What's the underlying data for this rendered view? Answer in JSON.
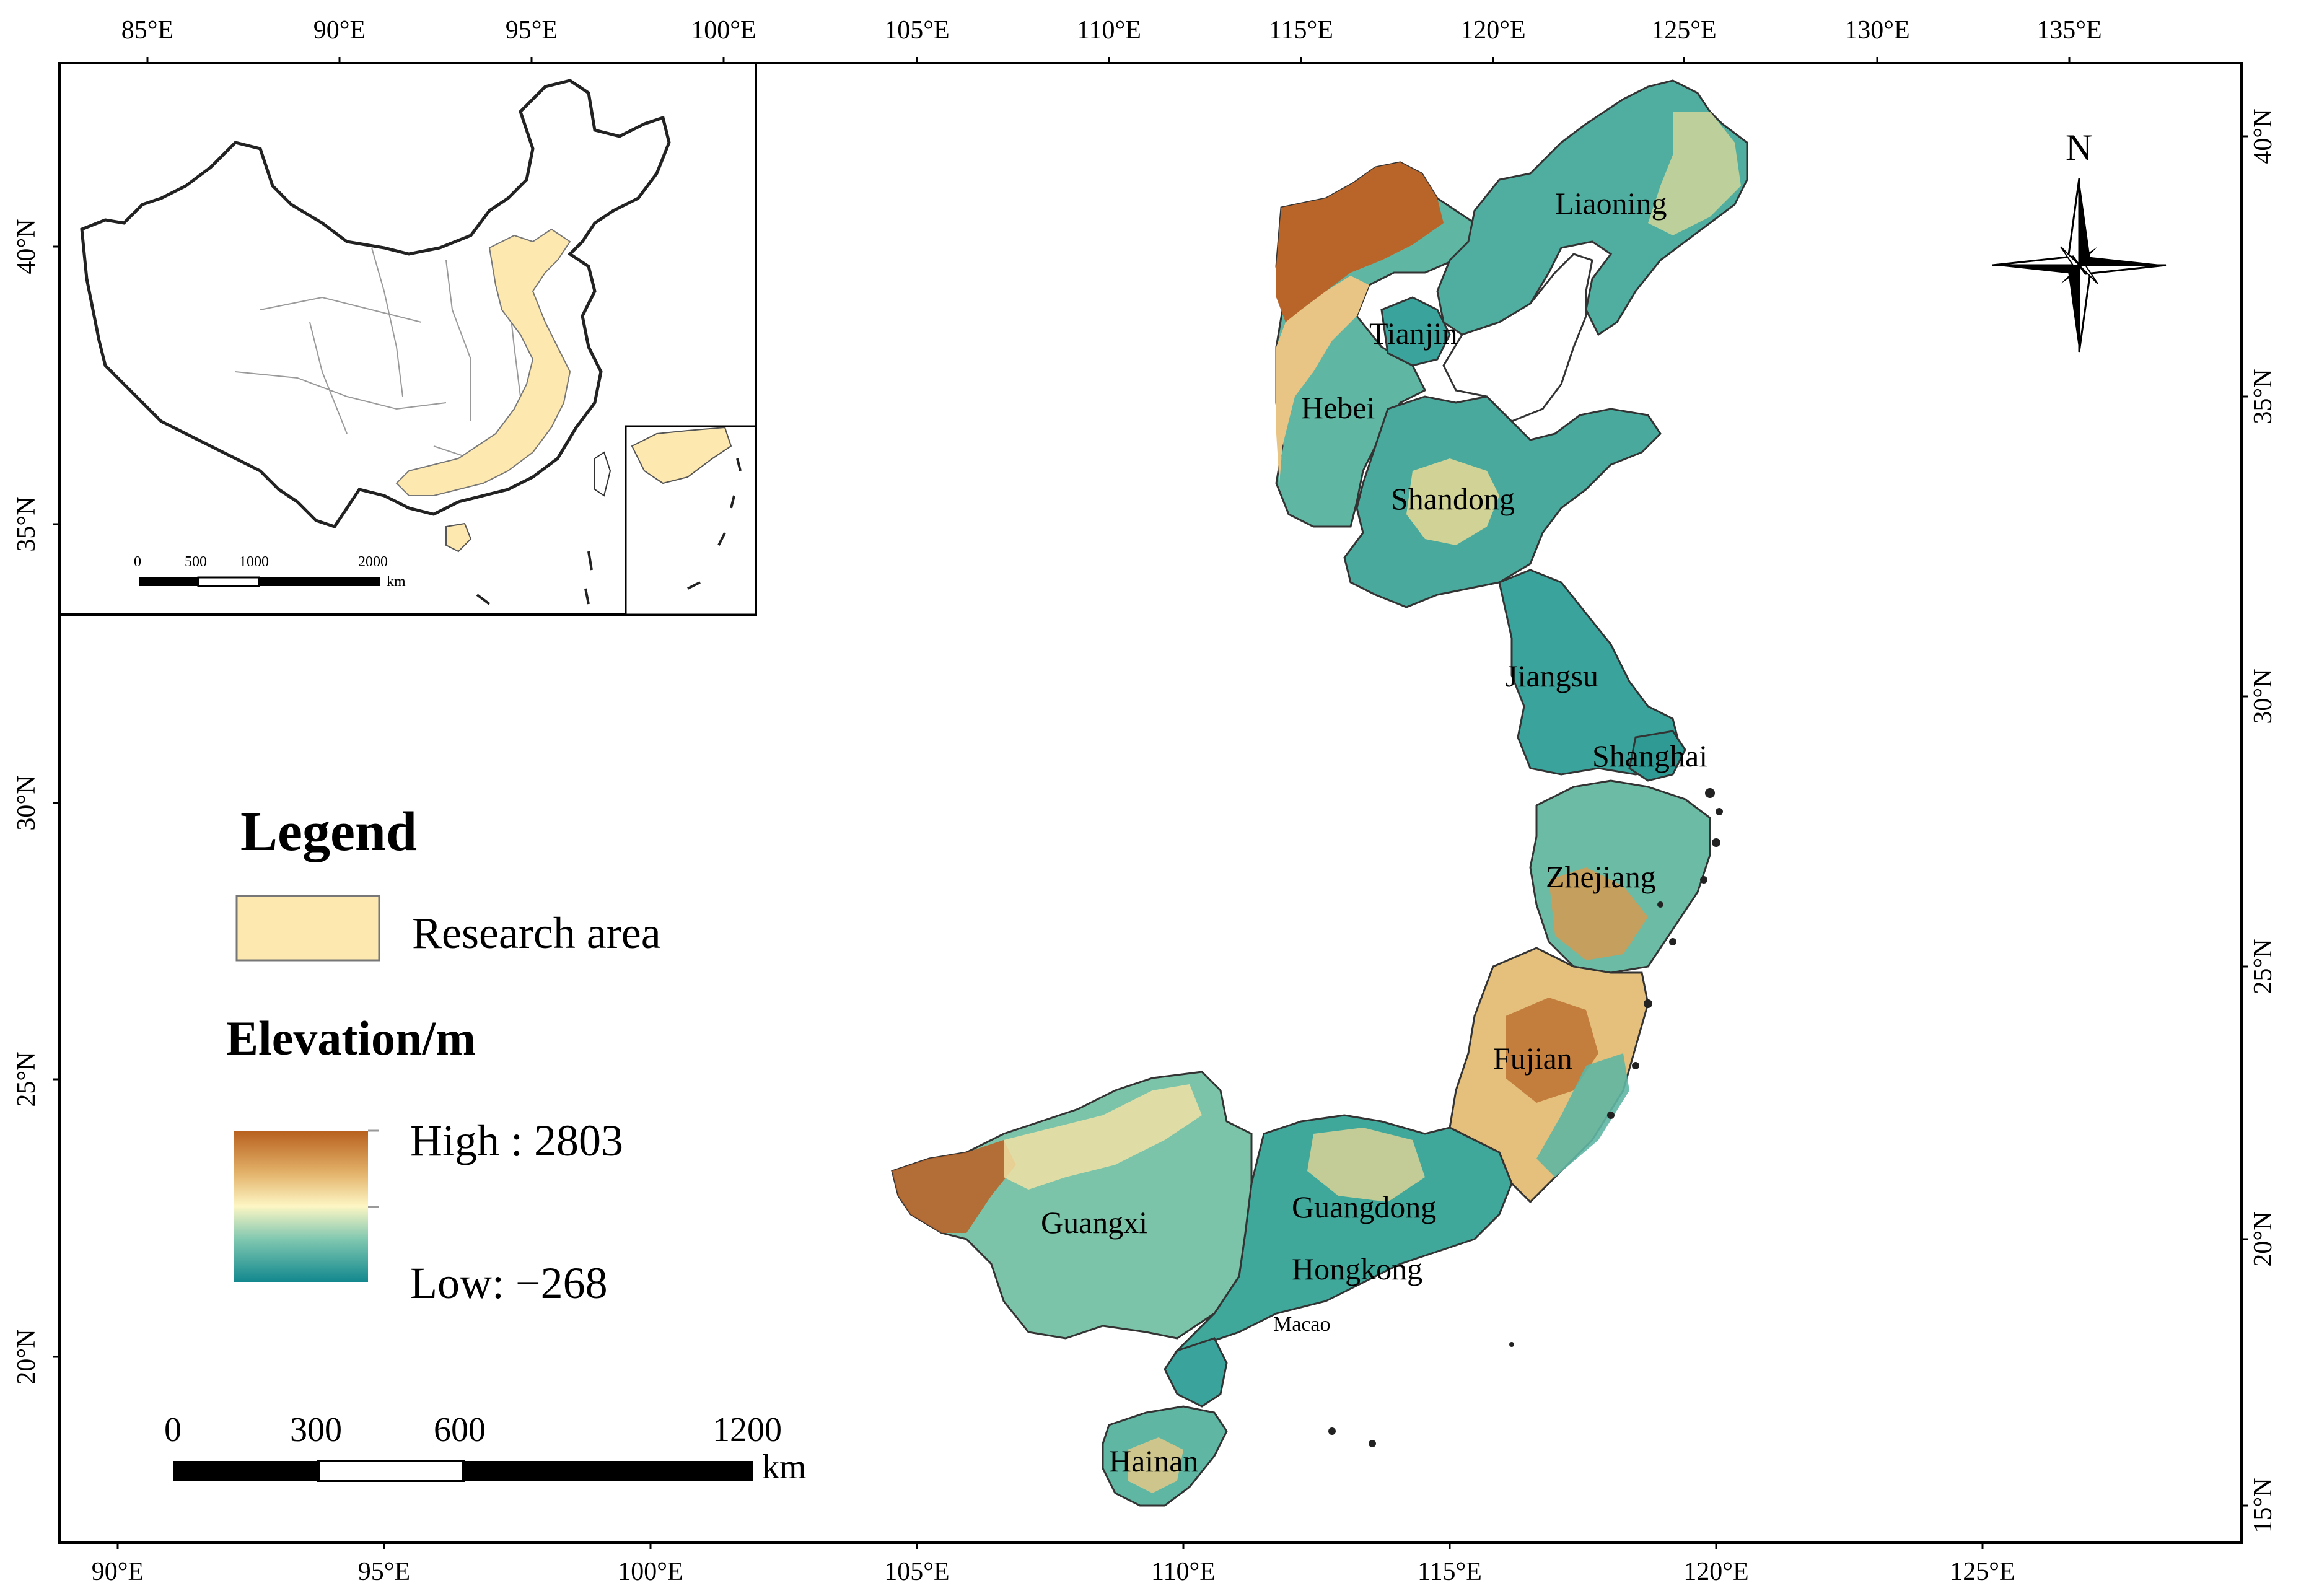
{
  "axes": {
    "top_lon_labels": [
      "85°E",
      "90°E",
      "95°E",
      "100°E",
      "105°E",
      "110°E",
      "115°E",
      "120°E",
      "125°E",
      "130°E",
      "135°E"
    ],
    "bottom_lon_labels": [
      "90°E",
      "95°E",
      "100°E",
      "105°E",
      "110°E",
      "115°E",
      "120°E",
      "125°E"
    ],
    "left_lat_labels": [
      "40°N",
      "35°N",
      "30°N",
      "25°N",
      "20°N"
    ],
    "right_lat_labels": [
      "40°N",
      "35°N",
      "30°N",
      "25°N",
      "20°N",
      "15°N"
    ]
  },
  "provinces": {
    "liaoning": "Liaoning",
    "tianjin": "Tianjin",
    "hebei": "Hebei",
    "shandong": "Shandong",
    "jiangsu": "Jiangsu",
    "shanghai": "Shanghai",
    "zhejiang": "Zhejiang",
    "fujian": "Fujian",
    "guangdong": "Guangdong",
    "hongkong": "Hongkong",
    "macao": "Macao",
    "guangxi": "Guangxi",
    "hainan": "Hainan"
  },
  "legend": {
    "title": "Legend",
    "research_area": "Research area",
    "elevation_title": "Elevation/m",
    "high": "High : 2803",
    "low": "Low: −268"
  },
  "scale_bar": {
    "labels": [
      "0",
      "300",
      "600",
      "1200"
    ],
    "unit": "km"
  },
  "inset_scale_bar": {
    "labels": [
      "0",
      "500",
      "1000",
      "2000"
    ],
    "unit": "km"
  },
  "north_arrow": {
    "label": "N"
  },
  "colors": {
    "research_area": "#fde9b0",
    "elevation_low": "#12888e",
    "elevation_mid": "#fdf6c4",
    "elevation_high": "#b8601e",
    "frame": "#000000"
  }
}
